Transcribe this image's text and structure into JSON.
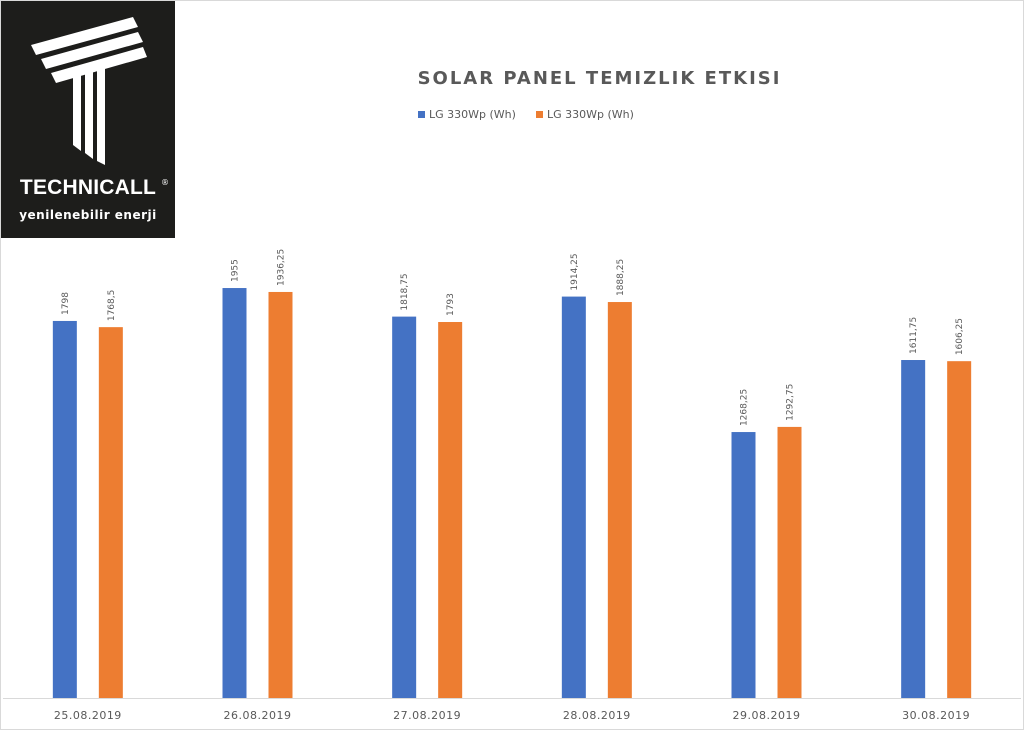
{
  "logo": {
    "name": "TECHNICALL",
    "registered": "®",
    "tagline": "yenilenebilir enerji"
  },
  "chart_data": {
    "type": "bar",
    "title": "SOLAR PANEL TEMIZLIK ETKISI",
    "xlabel": "",
    "ylabel": "",
    "categories": [
      "25.08.2019",
      "26.08.2019",
      "27.08.2019",
      "28.08.2019",
      "29.08.2019",
      "30.08.2019"
    ],
    "series": [
      {
        "name": "LG 330Wp (Wh)",
        "color": "#4472c4",
        "values": [
          1798,
          1955,
          1818.75,
          1914.25,
          1268.25,
          1611.75
        ],
        "labels": [
          "1798",
          "1955",
          "1818,75",
          "1914,25",
          "1268,25",
          "1611,75"
        ]
      },
      {
        "name": "LG 330Wp (Wh)",
        "color": "#ed7d31",
        "values": [
          1768.5,
          1936.25,
          1793,
          1888.25,
          1292.75,
          1606.25
        ],
        "labels": [
          "1768,5",
          "1936,25",
          "1793",
          "1888,25",
          "1292,75",
          "1606,25"
        ]
      }
    ],
    "ylim": [
      0,
      2000
    ],
    "grid": false,
    "legend": "top-center",
    "data_labels": true
  }
}
